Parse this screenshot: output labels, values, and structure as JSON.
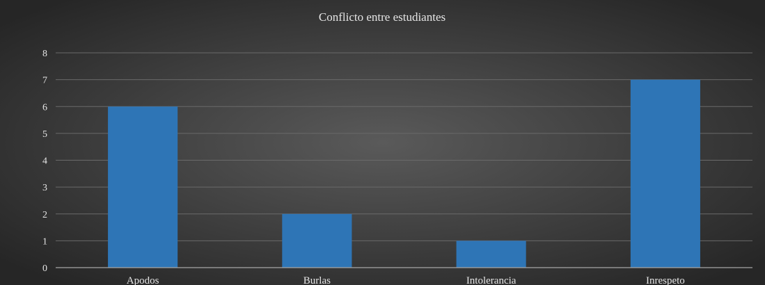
{
  "chart_data": {
    "type": "bar",
    "title": "Conflicto entre estudiantes",
    "categories": [
      "Apodos",
      "Burlas",
      "Intolerancia",
      "Inrespeto"
    ],
    "values": [
      6,
      2,
      1,
      7
    ],
    "ylim": [
      0,
      8
    ],
    "yticks": [
      0,
      1,
      2,
      3,
      4,
      5,
      6,
      7,
      8
    ],
    "grid": true,
    "legend": "none",
    "xlabel": "",
    "ylabel": "",
    "colors": {
      "bar": "#2E75B6",
      "background_center": "#5a5a5a",
      "background_edge": "#262626",
      "text": "#e6e6e6",
      "gridline": "#6a6a6a",
      "axis_line": "#a6a6a6"
    }
  }
}
